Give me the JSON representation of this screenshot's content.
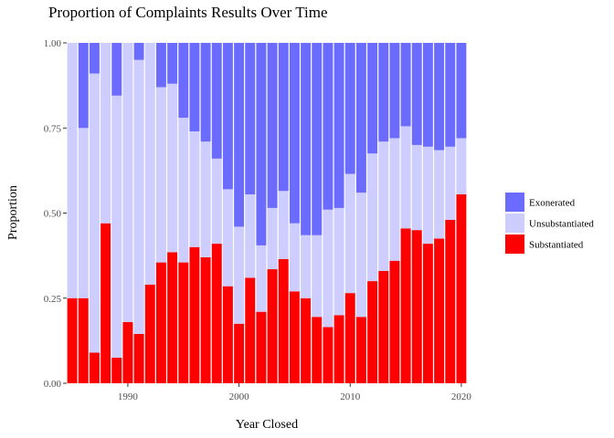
{
  "chart_data": {
    "type": "bar",
    "stacked": true,
    "title": "Proportion of Complaints Results Over Time",
    "xlabel": "Year Closed",
    "ylabel": "Proportion",
    "xlim": [
      1984.5,
      2020.5
    ],
    "ylim": [
      0,
      1
    ],
    "x_ticks": [
      1990,
      2000,
      2010,
      2020
    ],
    "y_ticks": [
      0,
      0.25,
      0.5,
      0.75,
      1
    ],
    "y_tick_labels": [
      "0.00",
      "0.25",
      "0.50",
      "0.75",
      "1.00"
    ],
    "grid": false,
    "legend_position": "right",
    "categories": [
      1985,
      1986,
      1987,
      1988,
      1989,
      1990,
      1991,
      1992,
      1993,
      1994,
      1995,
      1996,
      1997,
      1998,
      1999,
      2000,
      2001,
      2002,
      2003,
      2004,
      2005,
      2006,
      2007,
      2008,
      2009,
      2010,
      2011,
      2012,
      2013,
      2014,
      2015,
      2016,
      2017,
      2018,
      2019,
      2020
    ],
    "series": [
      {
        "name": "Exonerated",
        "color": "#6b6bff",
        "values": [
          0.0,
          0.25,
          0.09,
          0.0,
          0.155,
          0.0,
          0.05,
          0.0,
          0.13,
          0.12,
          0.22,
          0.26,
          0.29,
          0.34,
          0.43,
          0.54,
          0.445,
          0.595,
          0.485,
          0.435,
          0.53,
          0.565,
          0.565,
          0.49,
          0.485,
          0.385,
          0.44,
          0.325,
          0.29,
          0.28,
          0.245,
          0.3,
          0.305,
          0.315,
          0.305,
          0.28
        ]
      },
      {
        "name": "Unsubstantiated",
        "color": "#cdcdff",
        "values": [
          0.75,
          0.5,
          0.82,
          0.53,
          0.77,
          0.82,
          0.805,
          0.71,
          0.515,
          0.495,
          0.425,
          0.34,
          0.34,
          0.25,
          0.285,
          0.285,
          0.245,
          0.195,
          0.18,
          0.2,
          0.2,
          0.185,
          0.24,
          0.345,
          0.315,
          0.35,
          0.365,
          0.375,
          0.38,
          0.36,
          0.3,
          0.25,
          0.285,
          0.26,
          0.215,
          0.165
        ]
      },
      {
        "name": "Substantiated",
        "color": "#ff0000",
        "values": [
          0.25,
          0.25,
          0.09,
          0.47,
          0.075,
          0.18,
          0.145,
          0.29,
          0.355,
          0.385,
          0.355,
          0.4,
          0.37,
          0.41,
          0.285,
          0.175,
          0.31,
          0.21,
          0.335,
          0.365,
          0.27,
          0.25,
          0.195,
          0.165,
          0.2,
          0.265,
          0.195,
          0.3,
          0.33,
          0.36,
          0.455,
          0.45,
          0.41,
          0.425,
          0.48,
          0.555
        ]
      }
    ]
  }
}
